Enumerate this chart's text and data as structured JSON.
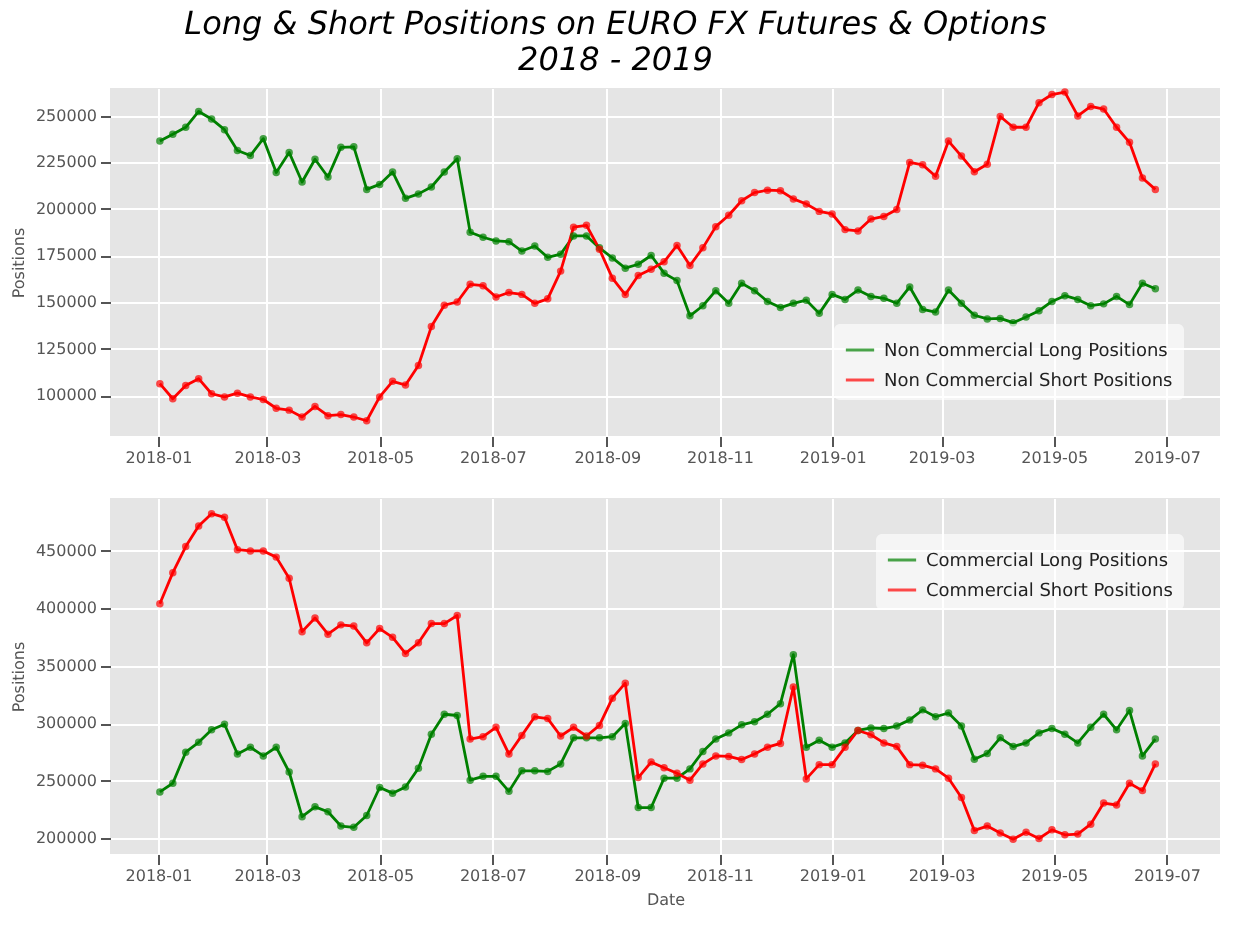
{
  "chart_data": [
    {
      "type": "line",
      "title": "Long & Short Positions on EURO FX Futures & Options\n2018 - 2019",
      "ylabel": "Positions",
      "legend": "bottom right",
      "grid": true,
      "marker": "circle",
      "line_style": "solid",
      "x": [
        "2018-01-02",
        "2018-01-09",
        "2018-01-16",
        "2018-01-23",
        "2018-01-30",
        "2018-02-06",
        "2018-02-13",
        "2018-02-20",
        "2018-02-27",
        "2018-03-06",
        "2018-03-13",
        "2018-03-20",
        "2018-03-27",
        "2018-04-03",
        "2018-04-10",
        "2018-04-17",
        "2018-04-24",
        "2018-05-01",
        "2018-05-08",
        "2018-05-15",
        "2018-05-22",
        "2018-05-29",
        "2018-06-05",
        "2018-06-12",
        "2018-06-19",
        "2018-06-26",
        "2018-07-03",
        "2018-07-10",
        "2018-07-17",
        "2018-07-24",
        "2018-07-31",
        "2018-08-07",
        "2018-08-14",
        "2018-08-21",
        "2018-08-28",
        "2018-09-04",
        "2018-09-11",
        "2018-09-18",
        "2018-09-25",
        "2018-10-02",
        "2018-10-09",
        "2018-10-16",
        "2018-10-23",
        "2018-10-30",
        "2018-11-06",
        "2018-11-13",
        "2018-11-20",
        "2018-11-27",
        "2018-12-04",
        "2018-12-11",
        "2018-12-18",
        "2018-12-25",
        "2019-01-01",
        "2019-01-08",
        "2019-01-15",
        "2019-01-22",
        "2019-01-29",
        "2019-02-05",
        "2019-02-12",
        "2019-02-19",
        "2019-02-26",
        "2019-03-05",
        "2019-03-12",
        "2019-03-19",
        "2019-03-26",
        "2019-04-02",
        "2019-04-09",
        "2019-04-16",
        "2019-04-23",
        "2019-04-30",
        "2019-05-07",
        "2019-05-14",
        "2019-05-21",
        "2019-05-28",
        "2019-06-04",
        "2019-06-11",
        "2019-06-18",
        "2019-06-25"
      ],
      "xlim": [
        "2017-12-06",
        "2019-07-30"
      ],
      "xticks": [
        "2018-01",
        "2018-03",
        "2018-05",
        "2018-07",
        "2018-09",
        "2018-11",
        "2019-01",
        "2019-03",
        "2019-05",
        "2019-07"
      ],
      "ylim": [
        78000,
        265000
      ],
      "yticks": [
        100000,
        125000,
        150000,
        175000,
        200000,
        225000,
        250000
      ],
      "series": [
        {
          "name": "Non Commercial Long Positions",
          "color": "#008000",
          "values": [
            236500,
            240200,
            243900,
            252400,
            248300,
            242600,
            231400,
            228700,
            237800,
            219600,
            230400,
            214500,
            226700,
            217200,
            233100,
            233400,
            210500,
            213200,
            219900,
            205700,
            208100,
            211800,
            219900,
            227000,
            187500,
            184800,
            182800,
            182400,
            177400,
            180100,
            174000,
            175700,
            185500,
            185500,
            179100,
            173700,
            168200,
            170300,
            175000,
            165500,
            161500,
            142600,
            148000,
            156100,
            149300,
            160100,
            156100,
            150300,
            147000,
            149300,
            151000,
            143900,
            154100,
            151400,
            156400,
            153000,
            152000,
            149300,
            158100,
            146000,
            144600,
            156400,
            149300,
            142900,
            140900,
            141200,
            138900,
            141900,
            145300,
            150300,
            153400,
            151400,
            148000,
            149000,
            153000,
            148600,
            160100,
            157100
          ]
        },
        {
          "name": "Non Commercial Short Positions",
          "color": "#ff0000",
          "values": [
            106100,
            98000,
            105100,
            108800,
            100700,
            99000,
            101000,
            99000,
            97600,
            92900,
            91900,
            88200,
            93900,
            88900,
            89500,
            88200,
            86200,
            99000,
            107400,
            105400,
            115900,
            136800,
            148300,
            150000,
            159500,
            158800,
            152700,
            155100,
            154100,
            149300,
            151700,
            166600,
            190200,
            191200,
            178400,
            162800,
            154000,
            164200,
            167600,
            171600,
            180400,
            169600,
            179100,
            190500,
            196600,
            204400,
            208800,
            210100,
            209800,
            205400,
            202700,
            198700,
            197300,
            188900,
            188200,
            194600,
            196000,
            199700,
            225000,
            223700,
            217600,
            236500,
            228400,
            220000,
            224000,
            249700,
            243900,
            243900,
            257100,
            261500,
            262800,
            250000,
            255100,
            253700,
            243900,
            235800,
            216600,
            210500
          ]
        }
      ]
    },
    {
      "type": "line",
      "xlabel": "Date",
      "ylabel": "Positions",
      "legend": "top right",
      "grid": true,
      "marker": "circle",
      "line_style": "solid",
      "x": [
        "2018-01-02",
        "2018-01-09",
        "2018-01-16",
        "2018-01-23",
        "2018-01-30",
        "2018-02-06",
        "2018-02-13",
        "2018-02-20",
        "2018-02-27",
        "2018-03-06",
        "2018-03-13",
        "2018-03-20",
        "2018-03-27",
        "2018-04-03",
        "2018-04-10",
        "2018-04-17",
        "2018-04-24",
        "2018-05-01",
        "2018-05-08",
        "2018-05-15",
        "2018-05-22",
        "2018-05-29",
        "2018-06-05",
        "2018-06-12",
        "2018-06-19",
        "2018-06-26",
        "2018-07-03",
        "2018-07-10",
        "2018-07-17",
        "2018-07-24",
        "2018-07-31",
        "2018-08-07",
        "2018-08-14",
        "2018-08-21",
        "2018-08-28",
        "2018-09-04",
        "2018-09-11",
        "2018-09-18",
        "2018-09-25",
        "2018-10-02",
        "2018-10-09",
        "2018-10-16",
        "2018-10-23",
        "2018-10-30",
        "2018-11-06",
        "2018-11-13",
        "2018-11-20",
        "2018-11-27",
        "2018-12-04",
        "2018-12-11",
        "2018-12-18",
        "2018-12-25",
        "2019-01-01",
        "2019-01-08",
        "2019-01-15",
        "2019-01-22",
        "2019-01-29",
        "2019-02-05",
        "2019-02-12",
        "2019-02-19",
        "2019-02-26",
        "2019-03-05",
        "2019-03-12",
        "2019-03-19",
        "2019-03-26",
        "2019-04-02",
        "2019-04-09",
        "2019-04-16",
        "2019-04-23",
        "2019-04-30",
        "2019-05-07",
        "2019-05-14",
        "2019-05-21",
        "2019-05-28",
        "2019-06-04",
        "2019-06-11",
        "2019-06-18",
        "2019-06-25"
      ],
      "xlim": [
        "2017-12-06",
        "2019-07-30"
      ],
      "xticks": [
        "2018-01",
        "2018-03",
        "2018-05",
        "2018-07",
        "2018-09",
        "2018-11",
        "2019-01",
        "2019-03",
        "2019-05",
        "2019-07"
      ],
      "ylim": [
        186500,
        496000
      ],
      "yticks": [
        200000,
        250000,
        300000,
        350000,
        400000,
        450000
      ],
      "series": [
        {
          "name": "Commercial Long Positions",
          "color": "#008000",
          "values": [
            240500,
            248000,
            275000,
            283600,
            294500,
            299300,
            273400,
            279300,
            271800,
            279300,
            257800,
            218900,
            227500,
            223200,
            210800,
            209700,
            220000,
            244300,
            239400,
            244800,
            261000,
            290700,
            308000,
            306900,
            250700,
            254000,
            254000,
            241000,
            258800,
            258800,
            258300,
            264800,
            287500,
            287500,
            287500,
            288500,
            299900,
            226900,
            226900,
            252400,
            252400,
            260500,
            275600,
            286400,
            291800,
            298800,
            301500,
            308000,
            317200,
            359800,
            279400,
            285300,
            279400,
            283100,
            293900,
            296100,
            295600,
            297700,
            303100,
            311800,
            305800,
            309100,
            297700,
            268900,
            273900,
            287500,
            279900,
            283100,
            291800,
            295600,
            290700,
            283100,
            296600,
            308000,
            294500,
            311200,
            271800,
            286400
          ]
        },
        {
          "name": "Commercial Short Positions",
          "color": "#ff0000",
          "values": [
            404100,
            431100,
            453800,
            471600,
            482400,
            479200,
            451100,
            450000,
            450000,
            444600,
            426200,
            379800,
            391700,
            377600,
            385700,
            384700,
            370100,
            382500,
            374900,
            360900,
            370100,
            386800,
            386800,
            393800,
            286400,
            288500,
            296600,
            273400,
            289600,
            305800,
            304200,
            289100,
            296600,
            289100,
            298300,
            322000,
            335000,
            252900,
            266400,
            261500,
            256700,
            250700,
            264800,
            271800,
            271300,
            268600,
            273400,
            279400,
            282600,
            331700,
            251800,
            264200,
            264200,
            279400,
            293900,
            290200,
            283100,
            279900,
            264200,
            263700,
            260500,
            252400,
            235600,
            207000,
            210800,
            204800,
            199400,
            205400,
            200000,
            207500,
            203200,
            203800,
            212400,
            230800,
            229100,
            248000,
            241600,
            264800
          ]
        }
      ]
    }
  ]
}
